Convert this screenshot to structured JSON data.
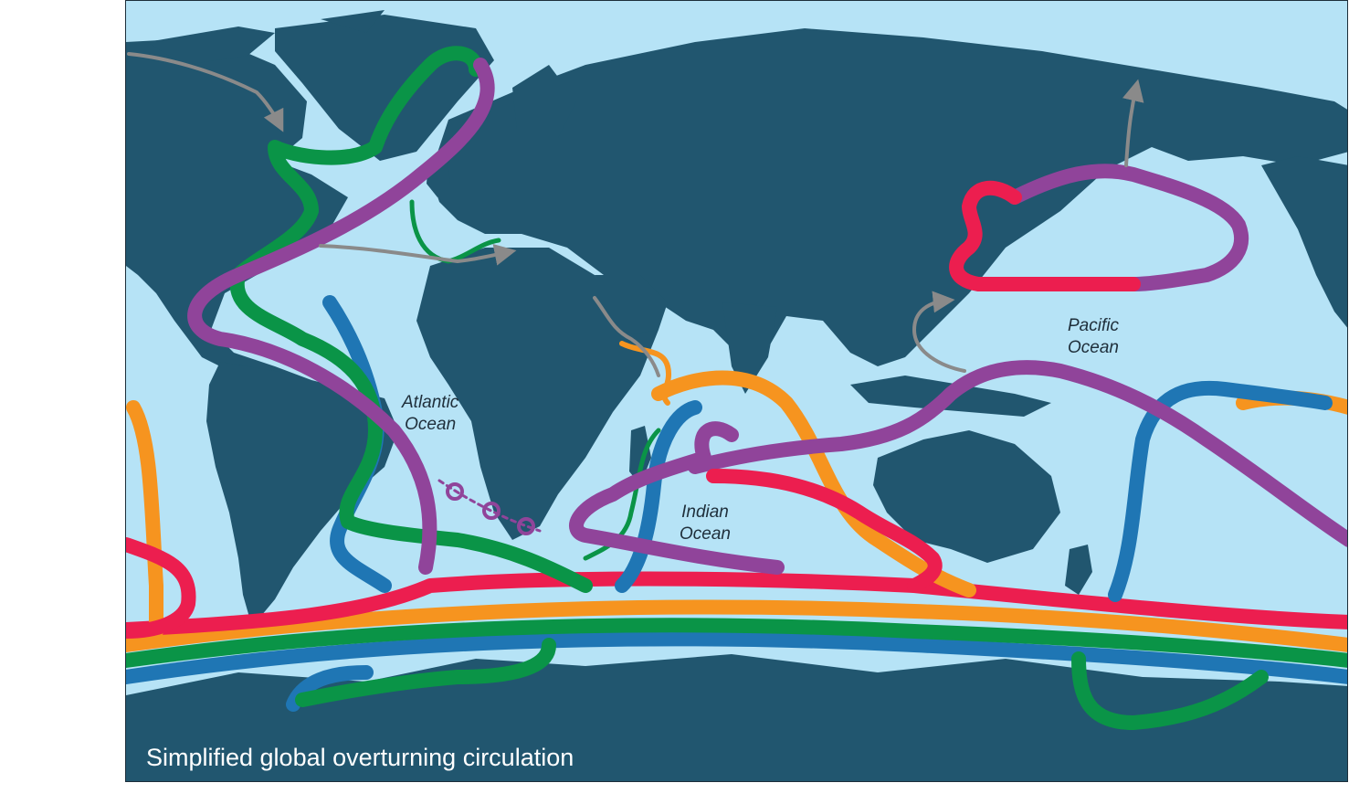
{
  "title": "Simplified global overturning circulation",
  "labels": {
    "atlantic": {
      "line1": "Atlantic",
      "line2": "Ocean"
    },
    "indian": {
      "line1": "Indian",
      "line2": "Ocean"
    },
    "pacific": {
      "line1": "Pacific",
      "line2": "Ocean"
    }
  },
  "colors": {
    "ocean": "#b6e3f6",
    "land": "#21566f",
    "purple": "#90449a",
    "red": "#ec1e4f",
    "orange": "#f6941f",
    "green": "#0a9447",
    "blue": "#1f76b4",
    "gray": "#8a8a8a"
  },
  "flows": [
    {
      "id": "purple",
      "color": "purple"
    },
    {
      "id": "red",
      "color": "red"
    },
    {
      "id": "orange",
      "color": "orange"
    },
    {
      "id": "green",
      "color": "green"
    },
    {
      "id": "blue",
      "color": "blue"
    },
    {
      "id": "gray",
      "color": "gray"
    }
  ]
}
